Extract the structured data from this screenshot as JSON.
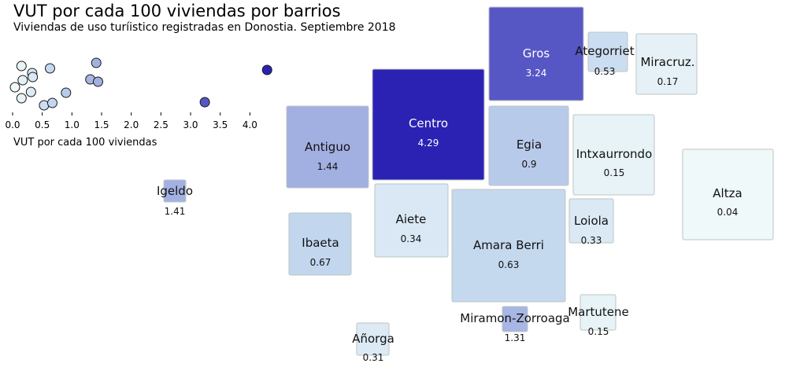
{
  "chart_data": {
    "type": "cartogram",
    "title": "VUT por cada 100 viviendas por barrios",
    "subtitle": "Viviendas de uso turíistico registradas en Donostia. Septiembre 2018",
    "color_scale": {
      "low": "#f2fbfa",
      "mid": "#c3d7ee",
      "high": "#2b22b4",
      "max_value": 4.29
    },
    "strip": {
      "xlabel": "VUT por cada 100 viviendas",
      "xlim": [
        0,
        4.3
      ],
      "ticks": [
        "0.0",
        "0.5",
        "1.0",
        "1.5",
        "2.0",
        "2.5",
        "3.0",
        "3.5",
        "4.0"
      ]
    },
    "barrios": [
      {
        "name": "Gros",
        "value": 3.24,
        "label": "3.24"
      },
      {
        "name": "Ategorrieta",
        "value": 0.53,
        "label": "0.53",
        "display_name": "Ategorriet"
      },
      {
        "name": "Miracruz.",
        "value": 0.17,
        "label": "0.17"
      },
      {
        "name": "Centro",
        "value": 4.29,
        "label": "4.29"
      },
      {
        "name": "Antiguo",
        "value": 1.44,
        "label": "1.44"
      },
      {
        "name": "Egia",
        "value": 0.9,
        "label": "0.9"
      },
      {
        "name": "Intxaurrondo",
        "value": 0.15,
        "label": "0.15"
      },
      {
        "name": "Altza",
        "value": 0.04,
        "label": "0.04"
      },
      {
        "name": "Igeldo",
        "value": 1.41,
        "label": "1.41"
      },
      {
        "name": "Aiete",
        "value": 0.34,
        "label": "0.34"
      },
      {
        "name": "Loiola",
        "value": 0.33,
        "label": "0.33"
      },
      {
        "name": "Ibaeta",
        "value": 0.67,
        "label": "0.67"
      },
      {
        "name": "Amara Berri",
        "value": 0.63,
        "label": "0.63"
      },
      {
        "name": "Martutene",
        "value": 0.15,
        "label": "0.15"
      },
      {
        "name": "Miramon-Zorroaga",
        "value": 1.31,
        "label": "1.31"
      },
      {
        "name": "Añorga",
        "value": 0.31,
        "label": "0.31"
      }
    ]
  }
}
